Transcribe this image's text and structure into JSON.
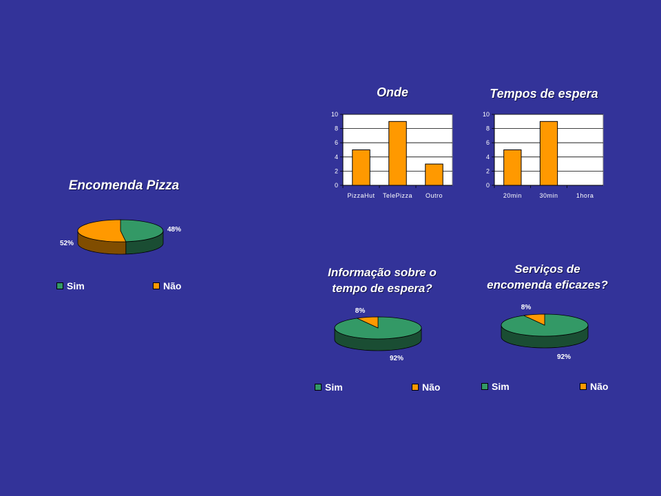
{
  "colors": {
    "background": "#333399",
    "bar": "#ff9900",
    "sim": "#339966",
    "nao": "#ff9900",
    "plot_bg": "#ffffff"
  },
  "chart_data": [
    {
      "id": "encomenda",
      "type": "pie",
      "title": "Encomenda Pizza",
      "labels": [
        "Sim",
        "Não"
      ],
      "values": [
        48,
        52
      ],
      "data_labels": [
        "48%",
        "52%"
      ],
      "legend": [
        "Sim",
        "Não"
      ],
      "legend_position": "bottom"
    },
    {
      "id": "onde",
      "type": "bar",
      "title": "Onde",
      "categories": [
        "PizzaHut",
        "TelePizza",
        "Outro"
      ],
      "values": [
        5,
        9,
        3
      ],
      "ylim": [
        0,
        10
      ],
      "yticks": [
        0,
        2,
        4,
        6,
        8,
        10
      ],
      "grid": true
    },
    {
      "id": "tempos",
      "type": "bar",
      "title": "Tempos de espera",
      "categories": [
        "20min",
        "30min",
        "1hora"
      ],
      "values": [
        5,
        9,
        0
      ],
      "ylim": [
        0,
        10
      ],
      "yticks": [
        0,
        2,
        4,
        6,
        8,
        10
      ],
      "grid": true
    },
    {
      "id": "informacao",
      "type": "pie",
      "title": "Informação sobre o tempo de espera?",
      "title_lines": [
        "Informação sobre o",
        "tempo de espera?"
      ],
      "labels": [
        "Sim",
        "Não"
      ],
      "values": [
        92,
        8
      ],
      "data_labels": [
        "92%",
        "8%"
      ],
      "legend": [
        "Sim",
        "Não"
      ],
      "legend_position": "bottom"
    },
    {
      "id": "servicos",
      "type": "pie",
      "title": "Serviços de encomenda eficazes?",
      "title_lines": [
        "Serviços de",
        "encomenda eficazes?"
      ],
      "labels": [
        "Sim",
        "Não"
      ],
      "values": [
        92,
        8
      ],
      "data_labels": [
        "92%",
        "8%"
      ],
      "legend": [
        "Sim",
        "Não"
      ],
      "legend_position": "bottom"
    }
  ]
}
